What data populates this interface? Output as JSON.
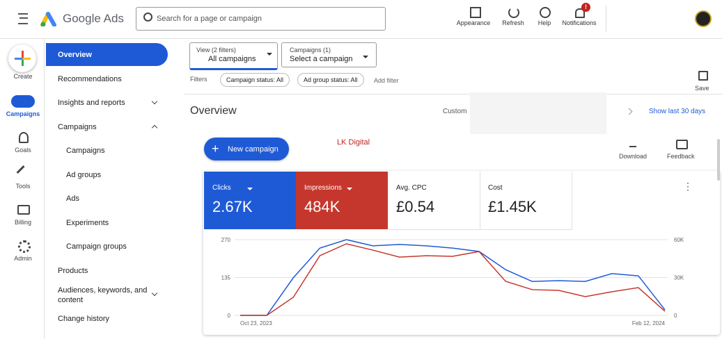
{
  "header": {
    "logo_text": "Google Ads",
    "search_placeholder": "Search for a page or campaign",
    "actions": [
      "Appearance",
      "Refresh",
      "Help",
      "Notifications"
    ],
    "notification_badge": "!"
  },
  "rail": {
    "create": "Create",
    "items": [
      "Campaigns",
      "Goals",
      "Tools",
      "Billing",
      "Admin"
    ]
  },
  "nav": {
    "items": [
      "Overview",
      "Recommendations",
      "Insights and reports",
      "Campaigns",
      "Campaigns",
      "Ad groups",
      "Ads",
      "Experiments",
      "Campaign groups",
      "Products",
      "Audiences, keywords, and content",
      "Change history"
    ]
  },
  "filters": {
    "view_label": "View (2 filters)",
    "view_value": "All campaigns",
    "campaigns_label": "Campaigns (1)",
    "campaigns_value": "Select a campaign",
    "filters_label": "Filters",
    "chips": [
      "Campaign status: All",
      "Ad group status: All"
    ],
    "add_filter": "Add filter",
    "save": "Save"
  },
  "overview": {
    "title": "Overview",
    "custom": "Custom",
    "date_link": "Show last 30 days",
    "new_campaign": "New campaign",
    "annotation": "LK Digital",
    "download": "Download",
    "feedback": "Feedback"
  },
  "scorecards": [
    {
      "label": "Clicks",
      "value": "2.67K"
    },
    {
      "label": "Impressions",
      "value": "484K"
    },
    {
      "label": "Avg. CPC",
      "value": "£0.54"
    },
    {
      "label": "Cost",
      "value": "£1.45K"
    }
  ],
  "chart_data": {
    "type": "line",
    "categories": [
      "Oct 23, 2023",
      null,
      null,
      null,
      null,
      null,
      null,
      null,
      null,
      null,
      null,
      null,
      null,
      null,
      null,
      null,
      "Feb 12, 2024"
    ],
    "series": [
      {
        "name": "Clicks",
        "color": "#1f5ad6",
        "values": [
          0,
          0,
          134,
          240,
          270,
          248,
          253,
          248,
          240,
          228,
          163,
          121,
          124,
          121,
          149,
          141,
          20
        ]
      },
      {
        "name": "Impressions",
        "color": "#c5372c",
        "axis": "y2",
        "values": [
          0,
          0,
          14300,
          47300,
          56700,
          51700,
          46200,
          47300,
          46800,
          50600,
          27000,
          20400,
          19800,
          14900,
          18700,
          22000,
          3300
        ]
      }
    ],
    "ylim": [
      0,
      270
    ],
    "yticks": [
      0,
      135,
      270
    ],
    "y2lim": [
      0,
      60000
    ],
    "y2ticks": [
      0,
      {
        "value": 30000,
        "label": "30K"
      },
      {
        "value": 60000,
        "label": "60K"
      }
    ],
    "grid": true
  }
}
